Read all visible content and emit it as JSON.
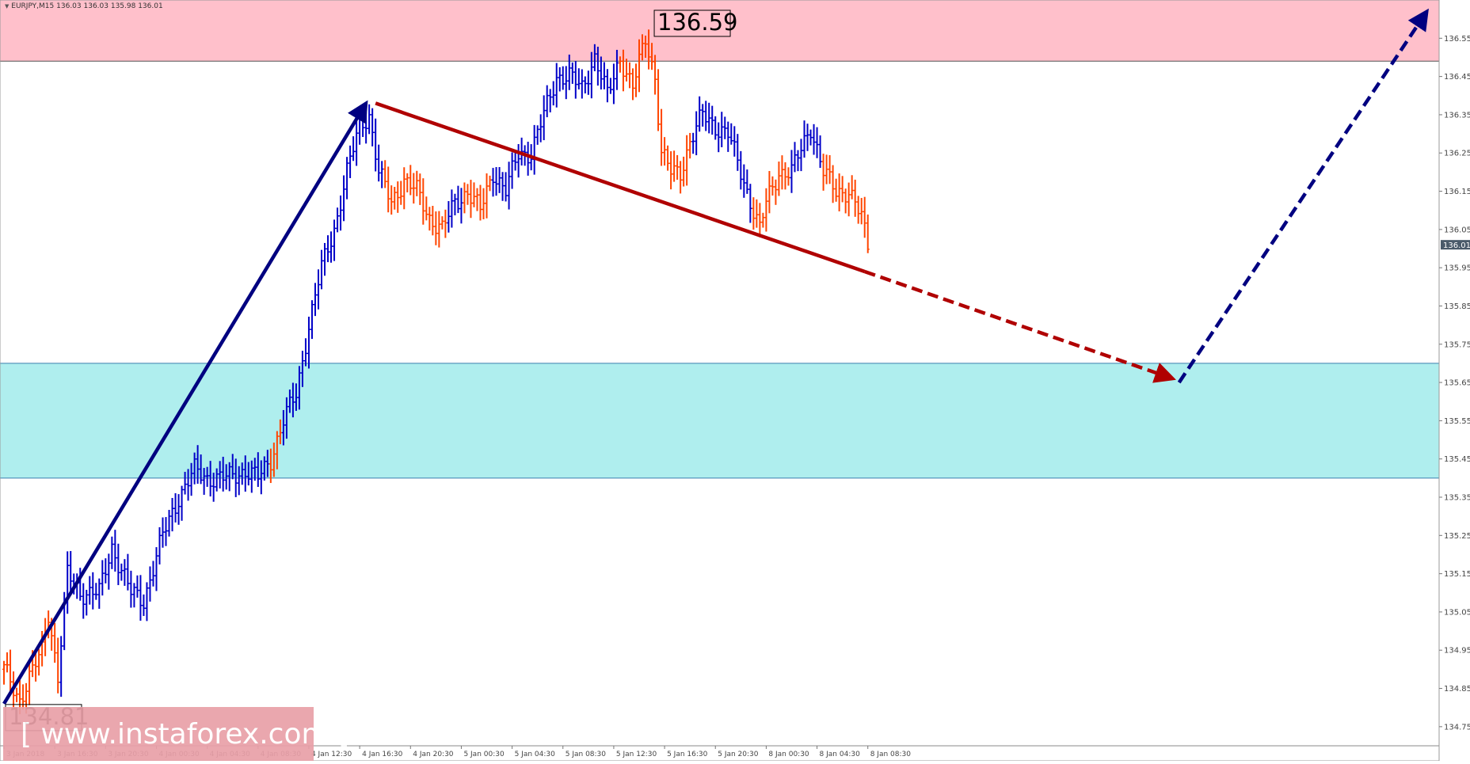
{
  "header": {
    "symbol_label": "EURJPY,M15",
    "ohlc_label": "136.03 136.03 135.98 136.01"
  },
  "watermark": {
    "text": "[ www.instaforex.com ]"
  },
  "colors": {
    "resistance_zone": "#ffc0cb",
    "support_zone": "#afeeee",
    "bull_bar": "#0000c8",
    "bear_bar": "#ff4500",
    "navy_arrow": "#000080",
    "red_arrow": "#b00000",
    "watermark_bg": "#e9a0a8",
    "current_price_tag": "#4a5a6a"
  },
  "chart_data": {
    "type": "bar",
    "symbol": "EURJPY",
    "timeframe": "M15",
    "ylim": [
      134.7,
      136.65
    ],
    "y_ticks": [
      "136.55",
      "136.45",
      "136.35",
      "136.25",
      "136.15",
      "136.05",
      "135.95",
      "135.85",
      "135.75",
      "135.65",
      "135.55",
      "135.45",
      "135.35",
      "135.25",
      "135.15",
      "135.05",
      "134.95",
      "134.85",
      "134.75"
    ],
    "x_ticks": [
      "3 Jan 2018",
      "3 Jan 16:30",
      "3 Jan 20:30",
      "4 Jan 00:30",
      "4 Jan 04:30",
      "4 Jan 08:30",
      "4 Jan 12:30",
      "4 Jan 16:30",
      "4 Jan 20:30",
      "5 Jan 00:30",
      "5 Jan 04:30",
      "5 Jan 08:30",
      "5 Jan 12:30",
      "5 Jan 16:30",
      "5 Jan 20:30",
      "8 Jan 00:30",
      "8 Jan 04:30",
      "8 Jan 08:30"
    ],
    "x_tick_bar_index": [
      0,
      16,
      32,
      48,
      64,
      80,
      96,
      112,
      128,
      144,
      160,
      176,
      192,
      208,
      224,
      240,
      256,
      272
    ],
    "current_price": "136.01",
    "zones": [
      {
        "name": "resistance",
        "from": 136.49,
        "to": 136.65
      },
      {
        "name": "support",
        "from": 135.4,
        "to": 135.7
      }
    ],
    "labels": [
      {
        "text": "136.59",
        "bar_index": 204,
        "price": 136.59
      },
      {
        "text": "134.81",
        "bar_index": 0,
        "price": 134.81
      }
    ],
    "wave_arrows": [
      {
        "style": "solid",
        "color": "navy",
        "from": {
          "bar_index": 0,
          "price": 134.81
        },
        "to": {
          "bar_index": 114,
          "price": 136.38
        }
      },
      {
        "style": "solid",
        "color": "red",
        "from": {
          "bar_index": 117,
          "price": 136.38
        },
        "to": {
          "bar_index": 271,
          "price": 135.94
        }
      },
      {
        "style": "dashed",
        "color": "red",
        "from": {
          "bar_index": 271,
          "price": 135.94
        },
        "to": {
          "bar_index": 368,
          "price": 135.66
        }
      },
      {
        "style": "dashed",
        "color": "navy",
        "from": {
          "bar_index": 370,
          "price": 135.65
        },
        "to": {
          "bar_index": 448,
          "price": 136.62
        }
      }
    ],
    "bars_note": "OHLC per 15-minute bar, estimated from the picture",
    "waypoints": [
      [
        0,
        134.9
      ],
      [
        5,
        134.82
      ],
      [
        12,
        134.95
      ],
      [
        14,
        135.05
      ],
      [
        17,
        134.88
      ],
      [
        20,
        135.15
      ],
      [
        24,
        135.1
      ],
      [
        30,
        135.1
      ],
      [
        34,
        135.22
      ],
      [
        40,
        135.1
      ],
      [
        44,
        135.08
      ],
      [
        50,
        135.25
      ],
      [
        55,
        135.35
      ],
      [
        60,
        135.42
      ],
      [
        64,
        135.4
      ],
      [
        70,
        135.4
      ],
      [
        76,
        135.42
      ],
      [
        80,
        135.4
      ],
      [
        84,
        135.45
      ],
      [
        88,
        135.55
      ],
      [
        92,
        135.62
      ],
      [
        96,
        135.8
      ],
      [
        100,
        135.95
      ],
      [
        104,
        136.05
      ],
      [
        108,
        136.2
      ],
      [
        112,
        136.32
      ],
      [
        115,
        136.35
      ],
      [
        118,
        136.2
      ],
      [
        122,
        136.12
      ],
      [
        126,
        136.18
      ],
      [
        130,
        136.15
      ],
      [
        134,
        136.08
      ],
      [
        138,
        136.05
      ],
      [
        142,
        136.12
      ],
      [
        146,
        136.15
      ],
      [
        150,
        136.1
      ],
      [
        154,
        136.2
      ],
      [
        158,
        136.15
      ],
      [
        162,
        136.25
      ],
      [
        166,
        136.25
      ],
      [
        170,
        136.35
      ],
      [
        174,
        136.45
      ],
      [
        178,
        136.45
      ],
      [
        182,
        136.42
      ],
      [
        186,
        136.5
      ],
      [
        190,
        136.4
      ],
      [
        194,
        136.5
      ],
      [
        198,
        136.42
      ],
      [
        202,
        136.55
      ],
      [
        205,
        136.45
      ],
      [
        207,
        136.25
      ],
      [
        210,
        136.2
      ],
      [
        213,
        136.2
      ],
      [
        216,
        136.28
      ],
      [
        220,
        136.35
      ],
      [
        224,
        136.32
      ],
      [
        228,
        136.3
      ],
      [
        232,
        136.2
      ],
      [
        236,
        136.1
      ],
      [
        238,
        136.05
      ],
      [
        240,
        136.12
      ],
      [
        244,
        136.2
      ],
      [
        248,
        136.2
      ],
      [
        252,
        136.28
      ],
      [
        254,
        136.32
      ],
      [
        258,
        136.2
      ],
      [
        262,
        136.15
      ],
      [
        266,
        136.15
      ],
      [
        270,
        136.08
      ],
      [
        272,
        136.01
      ]
    ],
    "bear_runs": [
      [
        0,
        17
      ],
      [
        84,
        87
      ],
      [
        120,
        139
      ],
      [
        145,
        153
      ],
      [
        194,
        205
      ],
      [
        206,
        216
      ],
      [
        236,
        247
      ],
      [
        258,
        272
      ]
    ]
  }
}
